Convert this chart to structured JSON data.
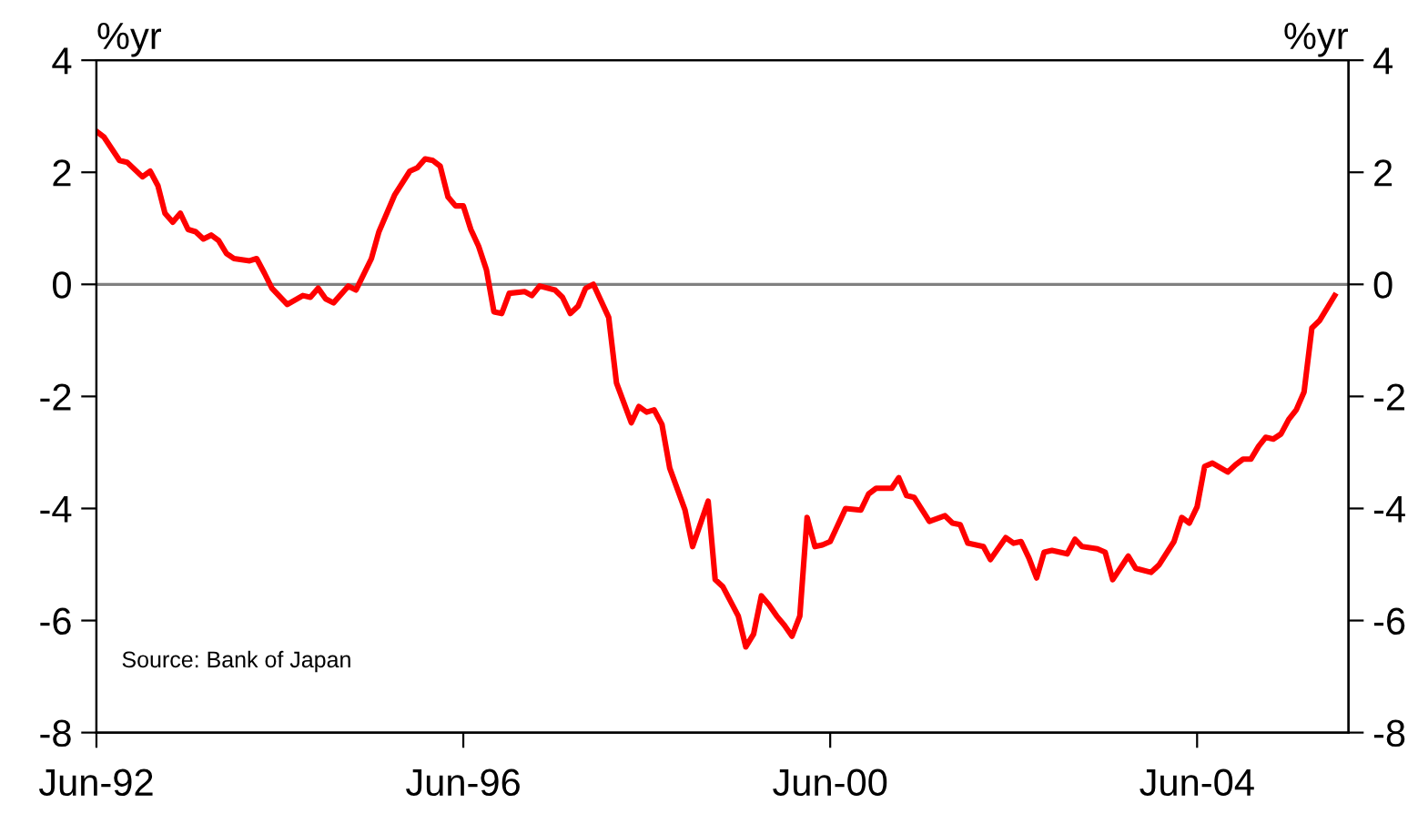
{
  "chart_data": {
    "type": "line",
    "ylabel": "%yr",
    "y2label": "%yr",
    "x": [
      "1992-06",
      "1992-07",
      "1992-09",
      "1992-10",
      "1992-12",
      "1993-01",
      "1993-02",
      "1993-03",
      "1993-04",
      "1993-05",
      "1993-06",
      "1993-07",
      "1993-08",
      "1993-09",
      "1993-10",
      "1993-11",
      "1993-12",
      "1994-02",
      "1994-03",
      "1994-04",
      "1994-05",
      "1994-07",
      "1994-09",
      "1994-10",
      "1994-11",
      "1994-12",
      "1995-01",
      "1995-03",
      "1995-04",
      "1995-06",
      "1995-07",
      "1995-09",
      "1995-11",
      "1995-12",
      "1996-01",
      "1996-02",
      "1996-03",
      "1996-04",
      "1996-05",
      "1996-06",
      "1996-07",
      "1996-08",
      "1996-09",
      "1996-10",
      "1996-11",
      "1996-12",
      "1997-02",
      "1997-03",
      "1997-04",
      "1997-06",
      "1997-07",
      "1997-08",
      "1997-09",
      "1997-10",
      "1997-11",
      "1998-01",
      "1998-02",
      "1998-04",
      "1998-05",
      "1998-06",
      "1998-07",
      "1998-08",
      "1998-09",
      "1998-11",
      "1998-12",
      "1999-02",
      "1999-03",
      "1999-04",
      "1999-06",
      "1999-07",
      "1999-08",
      "1999-09",
      "1999-10",
      "1999-11",
      "1999-12",
      "2000-01",
      "2000-02",
      "2000-03",
      "2000-04",
      "2000-05",
      "2000-06",
      "2000-08",
      "2000-10",
      "2000-11",
      "2000-12",
      "2001-02",
      "2001-03",
      "2001-04",
      "2001-05",
      "2001-07",
      "2001-09",
      "2001-10",
      "2001-11",
      "2001-12",
      "2002-02",
      "2002-03",
      "2002-05",
      "2002-06",
      "2002-07",
      "2002-08",
      "2002-09",
      "2002-10",
      "2002-11",
      "2003-01",
      "2003-02",
      "2003-03",
      "2003-05",
      "2003-06",
      "2003-07",
      "2003-09",
      "2003-10",
      "2003-12",
      "2004-01",
      "2004-03",
      "2004-04",
      "2004-05",
      "2004-06",
      "2004-07",
      "2004-08",
      "2004-10",
      "2004-11",
      "2004-12",
      "2005-01",
      "2005-02",
      "2005-03",
      "2005-04",
      "2005-05",
      "2005-06",
      "2005-07",
      "2005-08",
      "2005-09",
      "2005-10",
      "2005-12"
    ],
    "series": [
      {
        "color": "#ff0000",
        "values": [
          2.73,
          2.63,
          2.21,
          2.18,
          1.92,
          2.02,
          1.76,
          1.27,
          1.11,
          1.27,
          0.98,
          0.94,
          0.81,
          0.88,
          0.78,
          0.55,
          0.46,
          0.42,
          0.46,
          0.2,
          -0.07,
          -0.36,
          -0.2,
          -0.23,
          -0.07,
          -0.26,
          -0.33,
          -0.03,
          -0.1,
          0.46,
          0.94,
          1.59,
          2.02,
          2.08,
          2.24,
          2.21,
          2.11,
          1.56,
          1.4,
          1.4,
          0.98,
          0.68,
          0.26,
          -0.49,
          -0.52,
          -0.16,
          -0.13,
          -0.2,
          -0.03,
          -0.1,
          -0.23,
          -0.52,
          -0.39,
          -0.07,
          0.0,
          -0.59,
          -1.76,
          -2.47,
          -2.18,
          -2.28,
          -2.24,
          -2.5,
          -3.28,
          -4.03,
          -4.68,
          -3.87,
          -5.27,
          -5.4,
          -5.92,
          -6.47,
          -6.24,
          -5.56,
          -5.72,
          -5.92,
          -6.08,
          -6.28,
          -5.92,
          -4.16,
          -4.68,
          -4.65,
          -4.59,
          -4.0,
          -4.03,
          -3.74,
          -3.64,
          -3.64,
          -3.45,
          -3.77,
          -3.8,
          -4.23,
          -4.13,
          -4.26,
          -4.29,
          -4.62,
          -4.68,
          -4.91,
          -4.52,
          -4.62,
          -4.59,
          -4.88,
          -5.24,
          -4.78,
          -4.75,
          -4.81,
          -4.55,
          -4.68,
          -4.72,
          -4.78,
          -5.27,
          -4.85,
          -5.07,
          -5.14,
          -5.01,
          -4.59,
          -4.16,
          -4.26,
          -3.97,
          -3.25,
          -3.19,
          -3.35,
          -3.22,
          -3.12,
          -3.12,
          -2.89,
          -2.73,
          -2.76,
          -2.67,
          -2.41,
          -2.24,
          -1.92,
          -0.78,
          -0.65,
          -0.2
        ]
      }
    ],
    "xlim": [
      "1992-06",
      "2006-01-25"
    ],
    "xticks": [
      {
        "value": "1992-06",
        "label": "Jun-92"
      },
      {
        "value": "1996-06",
        "label": "Jun-96"
      },
      {
        "value": "2000-06",
        "label": "Jun-00"
      },
      {
        "value": "2004-06",
        "label": "Jun-04"
      }
    ],
    "ylim": [
      -8,
      4
    ],
    "yticks": [
      -8,
      -6,
      -4,
      -2,
      0,
      2,
      4
    ],
    "y2lim": [
      -8,
      4
    ],
    "y2ticks": [
      -8,
      -6,
      -4,
      -2,
      0,
      2,
      4
    ],
    "ref_lines": [
      {
        "axis": "y",
        "value": 0,
        "color": "#808080"
      }
    ],
    "annotations": [
      "Source: Bank of Japan"
    ],
    "grid": false,
    "legend": false,
    "marker": "none",
    "line_style": "solid"
  }
}
